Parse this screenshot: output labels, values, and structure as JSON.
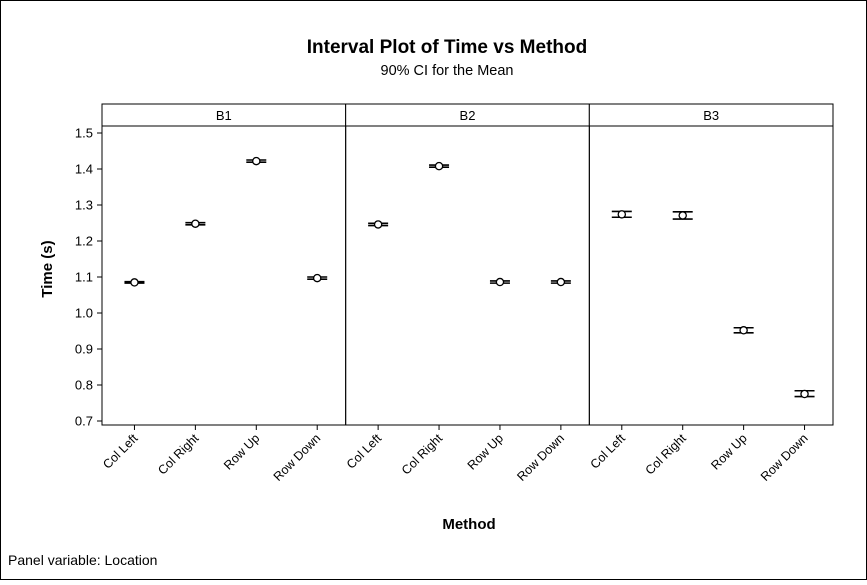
{
  "chart_data": {
    "type": "interval",
    "title": "Interval Plot of Time vs Method",
    "subtitle": "90% CI for the Mean",
    "xlabel": "Method",
    "ylabel": "Time (s)",
    "ylim": [
      0.7,
      1.52
    ],
    "yticks": [
      "0.7",
      "0.8",
      "0.9",
      "1.0",
      "1.1",
      "1.2",
      "1.3",
      "1.4",
      "1.5"
    ],
    "categories": [
      "Col Left",
      "Col Right",
      "Row Up",
      "Row Down"
    ],
    "panels": [
      {
        "name": "B1",
        "means": [
          1.085,
          1.248,
          1.422,
          1.097
        ],
        "lower": [
          1.083,
          1.245,
          1.419,
          1.094
        ],
        "upper": [
          1.087,
          1.251,
          1.425,
          1.1
        ]
      },
      {
        "name": "B2",
        "means": [
          1.246,
          1.408,
          1.086,
          1.086
        ],
        "lower": [
          1.243,
          1.405,
          1.083,
          1.083
        ],
        "upper": [
          1.249,
          1.411,
          1.089,
          1.089
        ]
      },
      {
        "name": "B3",
        "means": [
          1.274,
          1.271,
          0.952,
          0.775
        ],
        "lower": [
          1.266,
          1.261,
          0.945,
          0.768
        ],
        "upper": [
          1.282,
          1.281,
          0.959,
          0.784
        ]
      }
    ],
    "grid": false,
    "legend": "none"
  },
  "footnote": "Panel variable: Location"
}
